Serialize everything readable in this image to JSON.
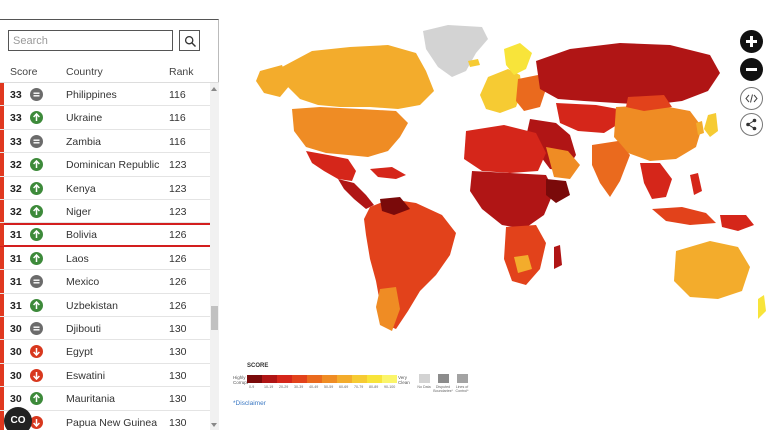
{
  "search": {
    "placeholder": "Search"
  },
  "table": {
    "headers": {
      "score": "Score",
      "country": "Country",
      "rank": "Rank"
    },
    "rows": [
      {
        "score": "33",
        "trend": "same",
        "country": "Philippines",
        "rank": "116"
      },
      {
        "score": "33",
        "trend": "up",
        "country": "Ukraine",
        "rank": "116"
      },
      {
        "score": "33",
        "trend": "same",
        "country": "Zambia",
        "rank": "116"
      },
      {
        "score": "32",
        "trend": "up",
        "country": "Dominican Republic",
        "rank": "123"
      },
      {
        "score": "32",
        "trend": "up",
        "country": "Kenya",
        "rank": "123"
      },
      {
        "score": "32",
        "trend": "up",
        "country": "Niger",
        "rank": "123"
      },
      {
        "score": "31",
        "trend": "up",
        "country": "Bolivia",
        "rank": "126",
        "selected": true
      },
      {
        "score": "31",
        "trend": "up",
        "country": "Laos",
        "rank": "126"
      },
      {
        "score": "31",
        "trend": "same",
        "country": "Mexico",
        "rank": "126"
      },
      {
        "score": "31",
        "trend": "up",
        "country": "Uzbekistan",
        "rank": "126"
      },
      {
        "score": "30",
        "trend": "same",
        "country": "Djibouti",
        "rank": "130"
      },
      {
        "score": "30",
        "trend": "down",
        "country": "Egypt",
        "rank": "130"
      },
      {
        "score": "30",
        "trend": "down",
        "country": "Eswatini",
        "rank": "130"
      },
      {
        "score": "30",
        "trend": "up",
        "country": "Mauritania",
        "rank": "130"
      },
      {
        "score": "30",
        "trend": "down",
        "country": "Papua New Guinea",
        "rank": "130"
      }
    ]
  },
  "trend_colors": {
    "up": "#3d8a3a",
    "same": "#6b6b6b",
    "down": "#d8381e"
  },
  "badge": {
    "label": "CO"
  },
  "map_controls": {
    "zoom_in_icon": "plus-icon",
    "zoom_out_icon": "minus-icon",
    "embed_icon": "code-icon",
    "share_icon": "share-icon"
  },
  "legend": {
    "title": "SCORE",
    "high": "Highly Corrupt",
    "clean": "Very Clean",
    "ranges": [
      "0-9",
      "10-19",
      "20-29",
      "30-39",
      "40-49",
      "50-59",
      "60-69",
      "70-79",
      "80-89",
      "90-100"
    ],
    "colors": [
      "#7a0a0a",
      "#b01515",
      "#d5261a",
      "#e2421b",
      "#ea6a1e",
      "#ef8c24",
      "#f3ac2c",
      "#f6cb33",
      "#f8e43a",
      "#fbf56a"
    ],
    "extras": [
      {
        "label": "No Data",
        "color": "#d3d3d3"
      },
      {
        "label": "Disputed Boundaries*",
        "color": "#8c8c8c"
      },
      {
        "label": "Lines of Control*",
        "color": "#a3a3a3"
      }
    ]
  },
  "disclaimer": "*Disclaimer"
}
